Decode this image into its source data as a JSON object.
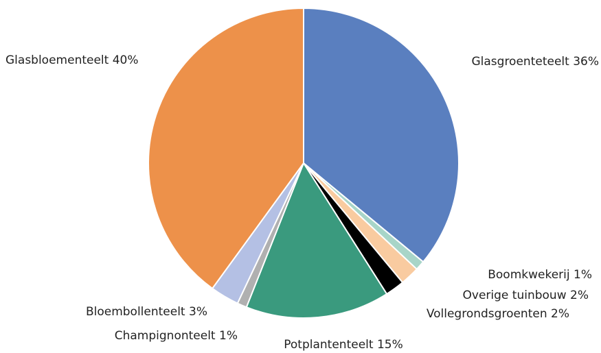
{
  "chart_data": {
    "type": "pie",
    "categories": [
      "Glasgroenteteelt",
      "Boomkwekerij",
      "Overige tuinbouw",
      "Vollegrondsgroenten",
      "Potplantenteelt",
      "Champignonteelt",
      "Bloembollenteelt",
      "Glasbloementeelt"
    ],
    "values": [
      36,
      1,
      2,
      2,
      15,
      1,
      3,
      40
    ],
    "value_labels": [
      "36%",
      "1%",
      "2%",
      "2%",
      "15%",
      "1%",
      "3%",
      "40%"
    ],
    "colors": [
      "#5a7fbf",
      "#a8d5c8",
      "#f9cba0",
      "#000000",
      "#3a9a7e",
      "#b0b0b0",
      "#b4c0e4",
      "#ed914a"
    ]
  }
}
